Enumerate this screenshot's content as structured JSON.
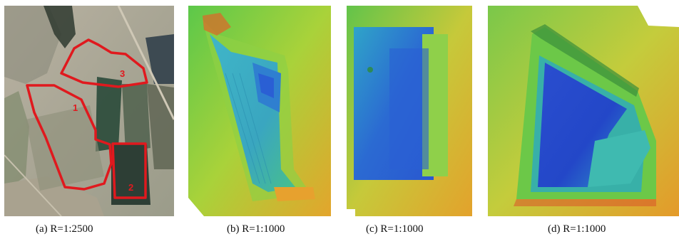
{
  "panels": [
    {
      "caption": "(a)  R=1:2500",
      "labels": [
        "1",
        "2",
        "3"
      ]
    },
    {
      "caption": "(b) R=1:1000"
    },
    {
      "caption": "(c) R=1:1000"
    },
    {
      "caption": "(d) R=1:1000"
    }
  ],
  "colors": {
    "outline": "#e0191e",
    "dem_low": "#1f3fd0",
    "dem_mid": "#2ea8a0",
    "dem_green": "#46c43a",
    "dem_high": "#e8a12a",
    "dem_top": "#d9472a"
  }
}
